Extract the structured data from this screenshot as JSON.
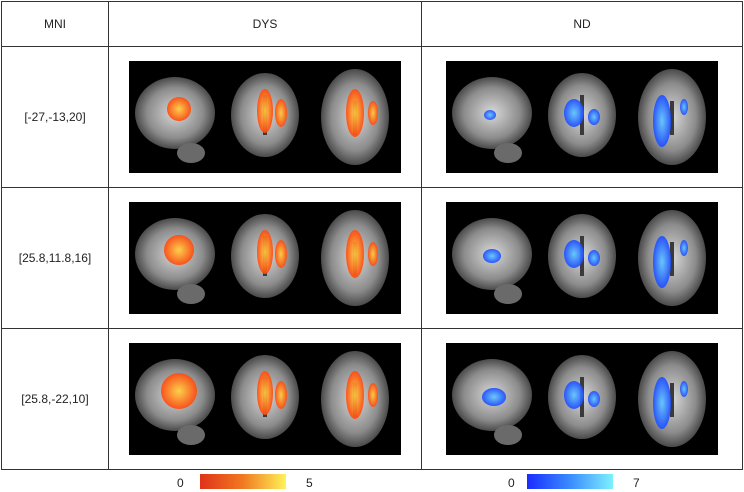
{
  "table": {
    "headers": [
      "MNI",
      "DYS",
      "ND"
    ],
    "rows": [
      {
        "mni": "[-27,-13,20]"
      },
      {
        "mni": "[25.8,11.8,16]"
      },
      {
        "mni": "[25.8,-22,10]"
      }
    ]
  },
  "legend_dys": {
    "min": "0",
    "max": "5",
    "color_low": "#e0321a",
    "color_high": "#fff25a"
  },
  "legend_nd": {
    "min": "0",
    "max": "7",
    "color_low": "#1a2cff",
    "color_high": "#7ef0ff"
  },
  "colors": {
    "dys_overlay": "#ff5a1a",
    "nd_overlay": "#2060ff",
    "border": "#333333"
  }
}
